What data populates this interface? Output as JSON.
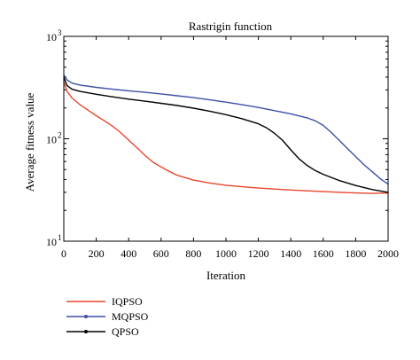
{
  "chart_data": {
    "type": "line",
    "title": "Rastrigin function",
    "xlabel": "Iteration",
    "ylabel": "Average fitness value",
    "xlim": [
      0,
      2000
    ],
    "ylim": [
      10,
      1000
    ],
    "yscale": "log",
    "grid": false,
    "legend_position": "below",
    "x_ticks": [
      0,
      200,
      400,
      600,
      800,
      1000,
      1200,
      1400,
      1600,
      1800,
      2000
    ],
    "y_ticks": [
      {
        "value": 10,
        "base": "10",
        "exp": "1"
      },
      {
        "value": 100,
        "base": "10",
        "exp": "2"
      },
      {
        "value": 1000,
        "base": "10",
        "exp": "3"
      }
    ],
    "series": [
      {
        "name": "IQPSO",
        "color": "#e8452c",
        "marker": "none",
        "x": [
          0,
          20,
          50,
          100,
          150,
          200,
          250,
          300,
          350,
          400,
          450,
          500,
          550,
          600,
          650,
          700,
          800,
          900,
          1000,
          1100,
          1200,
          1300,
          1400,
          1500,
          1600,
          1700,
          1800,
          1900,
          2000
        ],
        "y": [
          360,
          290,
          250,
          215,
          190,
          168,
          150,
          133,
          115,
          97,
          82,
          69,
          59,
          53,
          48,
          44,
          39.5,
          37,
          35.2,
          34,
          33,
          32.3,
          31.6,
          31,
          30.5,
          30,
          29.6,
          29.3,
          29.5
        ]
      },
      {
        "name": "MQPSO",
        "color": "#3d4fa8",
        "marker": "dot",
        "x": [
          0,
          20,
          50,
          100,
          200,
          300,
          400,
          500,
          600,
          700,
          800,
          900,
          1000,
          1100,
          1200,
          1300,
          1400,
          1500,
          1550,
          1600,
          1650,
          1700,
          1750,
          1800,
          1850,
          1900,
          1950,
          2000
        ],
        "y": [
          420,
          375,
          350,
          335,
          318,
          305,
          294,
          284,
          274,
          263,
          252,
          240,
          228,
          215,
          202,
          188,
          175,
          160,
          150,
          135,
          115,
          96,
          80,
          67,
          56,
          48,
          41,
          36
        ]
      },
      {
        "name": "QPSO",
        "color": "#000000",
        "marker": "dot",
        "x": [
          0,
          20,
          50,
          100,
          200,
          300,
          400,
          500,
          600,
          700,
          800,
          900,
          1000,
          1100,
          1200,
          1250,
          1300,
          1350,
          1400,
          1450,
          1500,
          1550,
          1600,
          1700,
          1800,
          1900,
          2000
        ],
        "y": [
          400,
          330,
          305,
          290,
          272,
          257,
          244,
          233,
          222,
          211,
          199,
          186,
          172,
          157,
          140,
          128,
          113,
          96,
          78,
          64,
          55,
          49,
          45,
          39,
          35,
          32,
          30
        ]
      }
    ]
  }
}
